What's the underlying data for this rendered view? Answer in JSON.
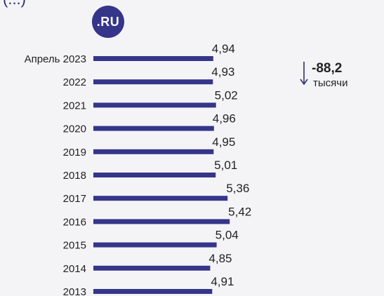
{
  "header": {
    "partial_text": "(...)",
    "badge_label": ".RU"
  },
  "colors": {
    "bar": "#35358a",
    "background": "#f4f4f7"
  },
  "annotation": {
    "value": "-88,2",
    "unit": "тысячи",
    "icon": "down-arrow-icon"
  },
  "chart_data": {
    "type": "bar",
    "orientation": "horizontal",
    "categories": [
      "Апрель 2023",
      "2022",
      "2021",
      "2020",
      "2019",
      "2018",
      "2017",
      "2016",
      "2015",
      "2014",
      "2013"
    ],
    "values": [
      4.94,
      4.93,
      5.02,
      4.96,
      4.95,
      5.01,
      5.36,
      5.42,
      5.04,
      4.85,
      4.91
    ],
    "value_labels": [
      "4,94",
      "4,93",
      "5,02",
      "4,96",
      "4,95",
      "5,01",
      "5,36",
      "5,42",
      "5,04",
      "4,85",
      "4,91"
    ],
    "title": "",
    "xlabel": "",
    "ylabel": "",
    "grid": false,
    "legend": "none"
  }
}
